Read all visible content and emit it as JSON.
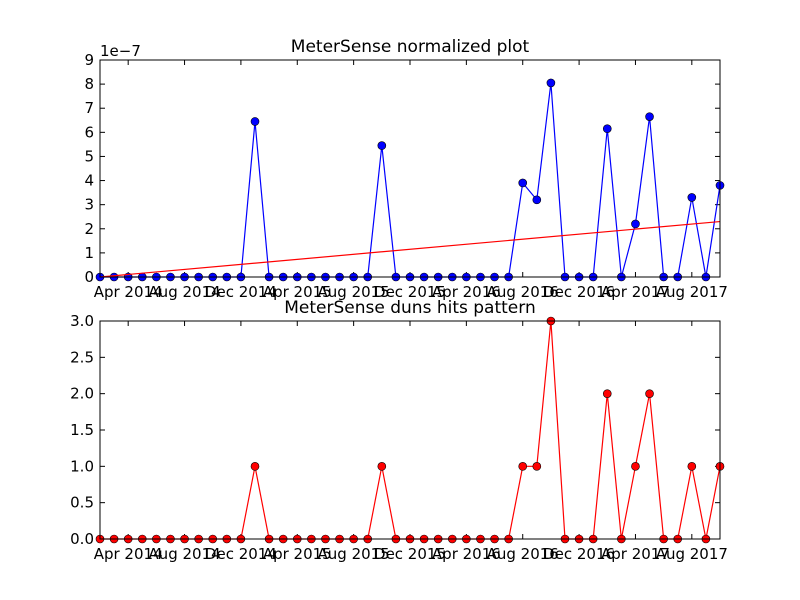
{
  "chart_data": [
    {
      "type": "line",
      "title": "MeterSense normalized plot",
      "offset_text": "1e−7",
      "xlim": [
        "2014-02",
        "2017-10"
      ],
      "xticks": [
        {
          "value": "2014-04",
          "label": "Apr 2014"
        },
        {
          "value": "2014-08",
          "label": "Aug 2014"
        },
        {
          "value": "2014-12",
          "label": "Dec 2014"
        },
        {
          "value": "2015-04",
          "label": "Apr 2015"
        },
        {
          "value": "2015-08",
          "label": "Aug 2015"
        },
        {
          "value": "2015-12",
          "label": "Dec 2015"
        },
        {
          "value": "2016-04",
          "label": "Apr 2016"
        },
        {
          "value": "2016-08",
          "label": "Aug 2016"
        },
        {
          "value": "2016-12",
          "label": "Dec 2016"
        },
        {
          "value": "2017-04",
          "label": "Apr 2017"
        },
        {
          "value": "2017-08",
          "label": "Aug 2017"
        }
      ],
      "ylim": [
        0,
        9
      ],
      "yticks": [
        0,
        1,
        2,
        3,
        4,
        5,
        6,
        7,
        8,
        9
      ],
      "series": [
        {
          "color": "#0000ff",
          "marker": true,
          "x": [
            "2014-02",
            "2014-03",
            "2014-04",
            "2014-05",
            "2014-06",
            "2014-07",
            "2014-08",
            "2014-09",
            "2014-10",
            "2014-11",
            "2014-12",
            "2015-01",
            "2015-02",
            "2015-03",
            "2015-04",
            "2015-05",
            "2015-06",
            "2015-07",
            "2015-08",
            "2015-09",
            "2015-10",
            "2015-11",
            "2015-12",
            "2016-01",
            "2016-02",
            "2016-03",
            "2016-04",
            "2016-05",
            "2016-06",
            "2016-07",
            "2016-08",
            "2016-09",
            "2016-10",
            "2016-11",
            "2016-12",
            "2017-01",
            "2017-02",
            "2017-03",
            "2017-04",
            "2017-05",
            "2017-06",
            "2017-07",
            "2017-08",
            "2017-09",
            "2017-10"
          ],
          "values": [
            0,
            0,
            0,
            0,
            0,
            0,
            0,
            0,
            0,
            0,
            0,
            6.45,
            0,
            0,
            0,
            0,
            0,
            0,
            0,
            0,
            5.45,
            0,
            0,
            0,
            0,
            0,
            0,
            0,
            0,
            0,
            3.9,
            3.2,
            8.05,
            0,
            0,
            0,
            6.15,
            0,
            2.2,
            6.65,
            0,
            0,
            3.3,
            0,
            3.8
          ]
        },
        {
          "color": "#ff0000",
          "marker": false,
          "x": [
            "2014-02",
            "2017-10"
          ],
          "values": [
            0,
            2.3
          ]
        }
      ]
    },
    {
      "type": "line",
      "title": "MeterSense duns hits pattern",
      "xlim": [
        "2014-02",
        "2017-10"
      ],
      "xticks": [
        {
          "value": "2014-04",
          "label": "Apr 2014"
        },
        {
          "value": "2014-08",
          "label": "Aug 2014"
        },
        {
          "value": "2014-12",
          "label": "Dec 2014"
        },
        {
          "value": "2015-04",
          "label": "Apr 2015"
        },
        {
          "value": "2015-08",
          "label": "Aug 2015"
        },
        {
          "value": "2015-12",
          "label": "Dec 2015"
        },
        {
          "value": "2016-04",
          "label": "Apr 2016"
        },
        {
          "value": "2016-08",
          "label": "Aug 2016"
        },
        {
          "value": "2016-12",
          "label": "Dec 2016"
        },
        {
          "value": "2017-04",
          "label": "Apr 2017"
        },
        {
          "value": "2017-08",
          "label": "Aug 2017"
        }
      ],
      "ylim": [
        0,
        3
      ],
      "yticks": [
        {
          "value": 0,
          "label": "0.0"
        },
        {
          "value": 0.5,
          "label": "0.5"
        },
        {
          "value": 1,
          "label": "1.0"
        },
        {
          "value": 1.5,
          "label": "1.5"
        },
        {
          "value": 2,
          "label": "2.0"
        },
        {
          "value": 2.5,
          "label": "2.5"
        },
        {
          "value": 3,
          "label": "3.0"
        }
      ],
      "series": [
        {
          "color": "#ff0000",
          "marker": true,
          "x": [
            "2014-02",
            "2014-03",
            "2014-04",
            "2014-05",
            "2014-06",
            "2014-07",
            "2014-08",
            "2014-09",
            "2014-10",
            "2014-11",
            "2014-12",
            "2015-01",
            "2015-02",
            "2015-03",
            "2015-04",
            "2015-05",
            "2015-06",
            "2015-07",
            "2015-08",
            "2015-09",
            "2015-10",
            "2015-11",
            "2015-12",
            "2016-01",
            "2016-02",
            "2016-03",
            "2016-04",
            "2016-05",
            "2016-06",
            "2016-07",
            "2016-08",
            "2016-09",
            "2016-10",
            "2016-11",
            "2016-12",
            "2017-01",
            "2017-02",
            "2017-03",
            "2017-04",
            "2017-05",
            "2017-06",
            "2017-07",
            "2017-08",
            "2017-09",
            "2017-10"
          ],
          "values": [
            0,
            0,
            0,
            0,
            0,
            0,
            0,
            0,
            0,
            0,
            0,
            1,
            0,
            0,
            0,
            0,
            0,
            0,
            0,
            0,
            1,
            0,
            0,
            0,
            0,
            0,
            0,
            0,
            0,
            0,
            1,
            1,
            3,
            0,
            0,
            0,
            2,
            0,
            1,
            2,
            0,
            0,
            1,
            0,
            1
          ]
        }
      ]
    }
  ]
}
